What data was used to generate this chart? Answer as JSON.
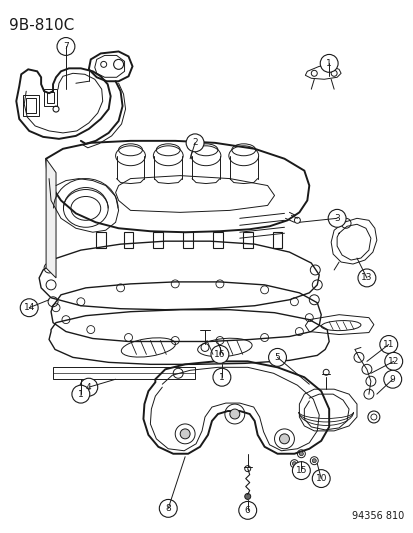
{
  "title_code": "9B-810C",
  "catalog_number": "94356 810",
  "bg_color": "#ffffff",
  "line_color": "#1a1a1a",
  "title_fontsize": 11,
  "label_fontsize": 7.5,
  "fig_width": 4.14,
  "fig_height": 5.33,
  "dpi": 100
}
